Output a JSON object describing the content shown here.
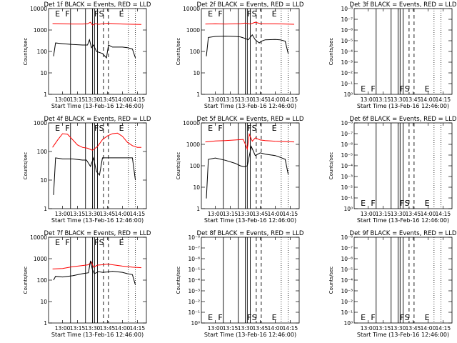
{
  "figure": {
    "xlabel": "Start Time (13-Feb-16 12:46:00)",
    "ylabel": "Counts/sec",
    "legend_text": "BLACK = Events, RED = LLD",
    "x_tick_labels": [
      "13:00",
      "13:15",
      "13:30",
      "13:45",
      "14:00",
      "14:15"
    ],
    "colors": {
      "events": "#000000",
      "lld": "#ff0000",
      "background": "#ffffff"
    }
  },
  "chart_data": [
    {
      "id": "1f",
      "title": "Det 1f BLACK = Events, RED = LLD",
      "type": "line",
      "xlabel": "Start Time (13-Feb-16 12:46:00)",
      "ylabel": "Counts/sec",
      "x_ticks": [
        "13:00",
        "13:15",
        "13:30",
        "13:45",
        "14:00",
        "14:15"
      ],
      "y_ticks": [
        "1",
        "10",
        "100",
        "1000",
        "10000"
      ],
      "ylim": [
        1,
        10000
      ],
      "yscale": "log",
      "markers": [
        {
          "label": "E",
          "x": "12:55"
        },
        {
          "label": "F",
          "x": "13:05"
        },
        {
          "label": "F",
          "x": "13:34"
        },
        {
          "label": "S",
          "x": "13:39"
        },
        {
          "label": "E",
          "x": "13:59"
        }
      ],
      "series": [
        {
          "name": "LLD",
          "color": "#ff0000",
          "x": [
            "12:50",
            "13:00",
            "13:10",
            "13:20",
            "13:25",
            "13:28",
            "13:30",
            "13:33",
            "13:36",
            "13:40",
            "13:45",
            "13:50",
            "14:00",
            "14:10",
            "14:19"
          ],
          "y": [
            2000,
            1950,
            1900,
            1900,
            1950,
            2300,
            1700,
            2000,
            1850,
            1950,
            2050,
            2000,
            1900,
            1850,
            1800
          ]
        },
        {
          "name": "Events",
          "color": "#000000",
          "x": [
            "12:51",
            "12:53",
            "13:00",
            "13:10",
            "13:20",
            "13:25",
            "13:27",
            "13:29",
            "13:31",
            "13:34",
            "13:40",
            "13:44",
            "13:46",
            "13:50",
            "14:00",
            "14:05",
            "14:10",
            "14:13"
          ],
          "y": [
            60,
            250,
            230,
            210,
            200,
            200,
            350,
            150,
            200,
            100,
            80,
            50,
            200,
            160,
            160,
            150,
            130,
            50
          ]
        }
      ]
    },
    {
      "id": "2f",
      "title": "Det 2f BLACK = Events, RED = LLD",
      "type": "line",
      "xlabel": "Start Time (13-Feb-16 12:46:00)",
      "ylabel": "Counts/sec",
      "x_ticks": [
        "13:00",
        "13:15",
        "13:30",
        "13:45",
        "14:00",
        "14:15"
      ],
      "y_ticks": [
        "1",
        "10",
        "100",
        "1000",
        "10000"
      ],
      "ylim": [
        1,
        10000
      ],
      "yscale": "log",
      "markers": [
        {
          "label": "E",
          "x": "12:55"
        },
        {
          "label": "F",
          "x": "13:05"
        },
        {
          "label": "F",
          "x": "13:34"
        },
        {
          "label": "S",
          "x": "13:39"
        },
        {
          "label": "E",
          "x": "13:59"
        }
      ],
      "series": [
        {
          "name": "LLD",
          "color": "#ff0000",
          "x": [
            "12:50",
            "13:00",
            "13:10",
            "13:20",
            "13:25",
            "13:30",
            "13:35",
            "13:40",
            "13:45",
            "13:50",
            "14:00",
            "14:10",
            "14:19"
          ],
          "y": [
            1900,
            1950,
            1900,
            1950,
            1950,
            2100,
            1900,
            2300,
            2000,
            1950,
            1950,
            1900,
            1850
          ]
        },
        {
          "name": "Events",
          "color": "#000000",
          "x": [
            "12:51",
            "12:53",
            "13:00",
            "13:10",
            "13:20",
            "13:25",
            "13:30",
            "13:33",
            "13:37",
            "13:40",
            "13:44",
            "13:46",
            "13:50",
            "14:00",
            "14:05",
            "14:10",
            "14:13"
          ],
          "y": [
            60,
            450,
            500,
            520,
            500,
            480,
            400,
            350,
            600,
            350,
            250,
            300,
            350,
            360,
            350,
            300,
            80
          ]
        }
      ]
    },
    {
      "id": "3f",
      "title": "Det 3f BLACK = Events, RED = LLD",
      "type": "line",
      "xlabel": "Start Time (13-Feb-16 12:46:00)",
      "ylabel": "Counts/sec",
      "x_ticks": [
        "13:00",
        "13:15",
        "13:30",
        "13:45",
        "14:00",
        "14:15"
      ],
      "y_ticks": [
        "10⁰",
        "10⁻¹",
        "10⁻²",
        "10⁻³",
        "10⁻⁴",
        "10⁻⁵",
        "10⁻⁶",
        "10⁻⁷",
        "10⁻⁸"
      ],
      "yscale": "log",
      "markers": [
        {
          "label": "E",
          "x": "12:55"
        },
        {
          "label": "F",
          "x": "13:05"
        },
        {
          "label": "F",
          "x": "13:34"
        },
        {
          "label": "S",
          "x": "13:39"
        },
        {
          "label": "E",
          "x": "13:59"
        }
      ],
      "series": []
    },
    {
      "id": "4f",
      "title": "Det 4f BLACK = Events, RED = LLD",
      "type": "line",
      "xlabel": "Start Time (13-Feb-16 12:46:00)",
      "ylabel": "Counts/sec",
      "x_ticks": [
        "13:00",
        "13:15",
        "13:30",
        "13:45",
        "14:00",
        "14:15"
      ],
      "y_ticks": [
        "1",
        "10",
        "100",
        "1000"
      ],
      "ylim": [
        1,
        1000
      ],
      "yscale": "log",
      "markers": [
        {
          "label": "E",
          "x": "12:55"
        },
        {
          "label": "F",
          "x": "13:05"
        },
        {
          "label": "F",
          "x": "13:34"
        },
        {
          "label": "S",
          "x": "13:39"
        },
        {
          "label": "E",
          "x": "13:59"
        }
      ],
      "series": [
        {
          "name": "LLD",
          "color": "#ff0000",
          "x": [
            "12:50",
            "12:55",
            "13:00",
            "13:05",
            "13:10",
            "13:15",
            "13:20",
            "13:25",
            "13:30",
            "13:35",
            "13:40",
            "13:45",
            "13:50",
            "13:55",
            "14:00",
            "14:05",
            "14:10",
            "14:15",
            "14:19"
          ],
          "y": [
            140,
            250,
            420,
            400,
            260,
            170,
            140,
            130,
            110,
            150,
            260,
            350,
            420,
            440,
            340,
            210,
            160,
            140,
            140
          ]
        },
        {
          "name": "Events",
          "color": "#000000",
          "x": [
            "12:51",
            "12:53",
            "13:00",
            "13:10",
            "13:20",
            "13:24",
            "13:28",
            "13:31",
            "13:34",
            "13:37",
            "13:40",
            "13:50",
            "14:00",
            "14:05",
            "14:10",
            "14:13"
          ],
          "y": [
            3,
            60,
            55,
            55,
            50,
            50,
            30,
            60,
            20,
            15,
            60,
            60,
            60,
            60,
            60,
            10
          ]
        }
      ]
    },
    {
      "id": "5f",
      "title": "Det 5f BLACK = Events, RED = LLD",
      "type": "line",
      "xlabel": "Start Time (13-Feb-16 12:46:00)",
      "ylabel": "Counts/sec",
      "x_ticks": [
        "13:00",
        "13:15",
        "13:30",
        "13:45",
        "14:00",
        "14:15"
      ],
      "y_ticks": [
        "1",
        "10",
        "100",
        "1000",
        "10000"
      ],
      "ylim": [
        1,
        10000
      ],
      "yscale": "log",
      "markers": [
        {
          "label": "E",
          "x": "12:55"
        },
        {
          "label": "F",
          "x": "13:05"
        },
        {
          "label": "F",
          "x": "13:34"
        },
        {
          "label": "S",
          "x": "13:39"
        },
        {
          "label": "E",
          "x": "13:59"
        }
      ],
      "series": [
        {
          "name": "LLD",
          "color": "#ff0000",
          "x": [
            "12:50",
            "13:00",
            "13:10",
            "13:20",
            "13:28",
            "13:32",
            "13:34",
            "13:37",
            "13:40",
            "13:45",
            "13:50",
            "14:00",
            "14:10",
            "14:19"
          ],
          "y": [
            1300,
            1450,
            1500,
            1600,
            1700,
            600,
            3000,
            1400,
            2000,
            1600,
            1500,
            1400,
            1350,
            1300
          ]
        },
        {
          "name": "Events",
          "color": "#000000",
          "x": [
            "12:51",
            "12:53",
            "13:00",
            "13:10",
            "13:20",
            "13:25",
            "13:29",
            "13:32",
            "13:36",
            "13:40",
            "13:45",
            "13:50",
            "14:00",
            "14:05",
            "14:10",
            "14:13"
          ],
          "y": [
            3,
            200,
            230,
            180,
            130,
            100,
            90,
            100,
            800,
            300,
            400,
            350,
            300,
            250,
            200,
            40
          ]
        }
      ]
    },
    {
      "id": "6f",
      "title": "Det 6f BLACK = Events, RED = LLD",
      "type": "line",
      "xlabel": "Start Time (13-Feb-16 12:46:00)",
      "ylabel": "Counts/sec",
      "x_ticks": [
        "13:00",
        "13:15",
        "13:30",
        "13:45",
        "14:00",
        "14:15"
      ],
      "y_ticks": [
        "10⁰",
        "10⁻¹",
        "10⁻²",
        "10⁻³",
        "10⁻⁴",
        "10⁻⁵",
        "10⁻⁶",
        "10⁻⁷",
        "10⁻⁸"
      ],
      "yscale": "log",
      "markers": [
        {
          "label": "E",
          "x": "12:55"
        },
        {
          "label": "F",
          "x": "13:05"
        },
        {
          "label": "F",
          "x": "13:34"
        },
        {
          "label": "S",
          "x": "13:39"
        },
        {
          "label": "E",
          "x": "13:59"
        }
      ],
      "series": []
    },
    {
      "id": "7f",
      "title": "Det 7f BLACK = Events, RED = LLD",
      "type": "line",
      "xlabel": "Start Time (13-Feb-16 12:46:00)",
      "ylabel": "Counts/sec",
      "x_ticks": [
        "13:00",
        "13:15",
        "13:30",
        "13:45",
        "14:00",
        "14:15"
      ],
      "y_ticks": [
        "1",
        "10",
        "100",
        "1000",
        "10000"
      ],
      "ylim": [
        1,
        10000
      ],
      "yscale": "log",
      "markers": [
        {
          "label": "E",
          "x": "12:55"
        },
        {
          "label": "F",
          "x": "13:05"
        },
        {
          "label": "F",
          "x": "13:34"
        },
        {
          "label": "S",
          "x": "13:39"
        },
        {
          "label": "E",
          "x": "13:59"
        }
      ],
      "series": [
        {
          "name": "LLD",
          "color": "#ff0000",
          "x": [
            "12:50",
            "13:00",
            "13:10",
            "13:20",
            "13:26",
            "13:29",
            "13:31",
            "13:35",
            "13:40",
            "13:45",
            "13:50",
            "14:00",
            "14:10",
            "14:19"
          ],
          "y": [
            330,
            350,
            420,
            480,
            520,
            700,
            400,
            500,
            520,
            560,
            520,
            450,
            400,
            380
          ]
        },
        {
          "name": "Events",
          "color": "#000000",
          "x": [
            "12:51",
            "12:53",
            "13:00",
            "13:10",
            "13:20",
            "13:26",
            "13:28",
            "13:30",
            "13:32",
            "13:36",
            "13:40",
            "13:45",
            "13:50",
            "14:00",
            "14:05",
            "14:10",
            "14:13"
          ],
          "y": [
            100,
            150,
            140,
            160,
            200,
            220,
            800,
            300,
            200,
            250,
            230,
            240,
            260,
            230,
            200,
            180,
            60
          ]
        }
      ]
    },
    {
      "id": "8f",
      "title": "Det 8f BLACK = Events, RED = LLD",
      "type": "line",
      "xlabel": "Start Time (13-Feb-16 12:46:00)",
      "ylabel": "Counts/sec",
      "x_ticks": [
        "13:00",
        "13:15",
        "13:30",
        "13:45",
        "14:00",
        "14:15"
      ],
      "y_ticks": [
        "10⁰",
        "10⁻¹",
        "10⁻²",
        "10⁻³",
        "10⁻⁴",
        "10⁻⁵",
        "10⁻⁶",
        "10⁻⁷",
        "10⁻⁸"
      ],
      "yscale": "log",
      "markers": [
        {
          "label": "E",
          "x": "12:55"
        },
        {
          "label": "F",
          "x": "13:05"
        },
        {
          "label": "F",
          "x": "13:34"
        },
        {
          "label": "S",
          "x": "13:39"
        },
        {
          "label": "E",
          "x": "13:59"
        }
      ],
      "series": []
    },
    {
      "id": "9f",
      "title": "Det 9f BLACK = Events, RED = LLD",
      "type": "line",
      "xlabel": "Start Time (13-Feb-16 12:46:00)",
      "ylabel": "Counts/sec",
      "x_ticks": [
        "13:00",
        "13:15",
        "13:30",
        "13:45",
        "14:00",
        "14:15"
      ],
      "y_ticks": [
        "10⁰",
        "10⁻¹",
        "10⁻²",
        "10⁻³",
        "10⁻⁴",
        "10⁻⁵",
        "10⁻⁶",
        "10⁻⁷",
        "10⁻⁸"
      ],
      "yscale": "log",
      "markers": [
        {
          "label": "E",
          "x": "12:55"
        },
        {
          "label": "F",
          "x": "13:05"
        },
        {
          "label": "F",
          "x": "13:34"
        },
        {
          "label": "S",
          "x": "13:39"
        },
        {
          "label": "E",
          "x": "13:59"
        }
      ],
      "series": []
    }
  ]
}
